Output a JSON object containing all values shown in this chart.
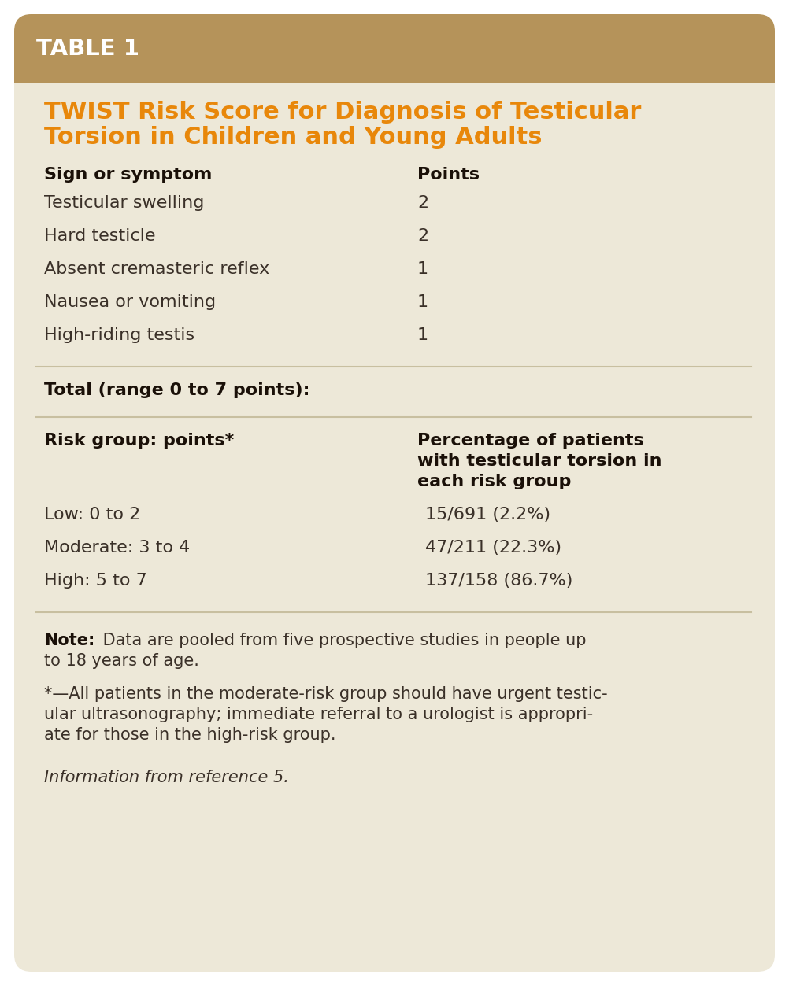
{
  "header_bg": "#b5935a",
  "body_bg": "#ede8d8",
  "header_text": "TABLE 1",
  "header_text_color": "#ffffff",
  "title_line1": "TWIST Risk Score for Diagnosis of Testicular",
  "title_line2": "Torsion in Children and Young Adults",
  "title_color": "#e8870a",
  "col1_header": "Sign or symptom",
  "col2_header": "Points",
  "rows": [
    [
      "Testicular swelling",
      "2"
    ],
    [
      "Hard testicle",
      "2"
    ],
    [
      "Absent cremasteric reflex",
      "1"
    ],
    [
      "Nausea or vomiting",
      "1"
    ],
    [
      "High-riding testis",
      "1"
    ]
  ],
  "total_label": "Total (range 0 to 7 points):",
  "risk_col1_header": "Risk group: points*",
  "risk_col2_header_lines": [
    "Percentage of patients",
    "with testicular torsion in",
    "each risk group"
  ],
  "risk_rows": [
    [
      "Low: 0 to 2",
      "15/691 (2.2%)"
    ],
    [
      "Moderate: 3 to 4",
      "47/211 (22.3%)"
    ],
    [
      "High: 5 to 7",
      "137/158 (86.7%)"
    ]
  ],
  "note_bold": "Note:",
  "note_rest": " Data are pooled from five prospective studies in people up to 18 years of age.",
  "footnote_line1": "*—All patients in the moderate-risk group should have urgent testic-",
  "footnote_line2": "ular ultrasonography; immediate referral to a urologist is appropri-",
  "footnote_line3": "ate for those in the high-risk group.",
  "reference_text": "Information from reference 5.",
  "text_color": "#3a3028",
  "bold_color": "#1a1008",
  "orange_color": "#e8870a",
  "divider_color": "#c8bfa0",
  "white": "#ffffff"
}
